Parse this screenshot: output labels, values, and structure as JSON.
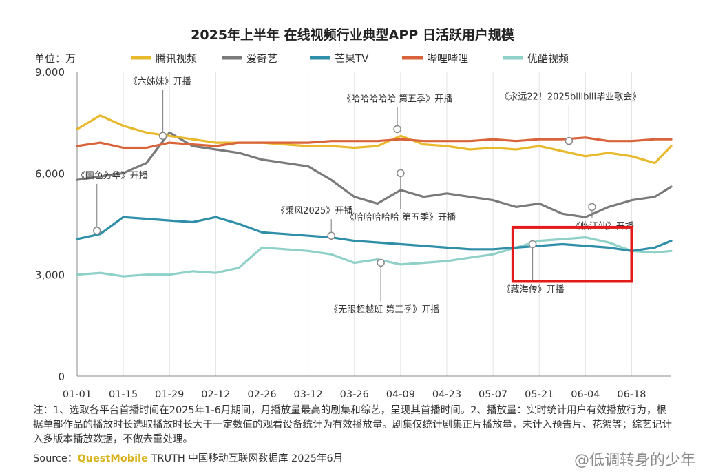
{
  "chart_data": {
    "type": "line",
    "title": "2025年上半年 在线视频行业典型APP 日活跃用户规模",
    "unit_label": "单位：万",
    "ylim": [
      0,
      9000
    ],
    "y_ticks": [
      0,
      3000,
      6000,
      9000
    ],
    "y_tick_labels": [
      "0",
      "3,000",
      "6,000",
      "9,000"
    ],
    "x_range": [
      "2025-01-01",
      "2025-06-30"
    ],
    "x_tick_labels": [
      "01-01",
      "01-15",
      "01-29",
      "02-12",
      "02-26",
      "03-12",
      "03-26",
      "04-09",
      "04-23",
      "05-07",
      "05-21",
      "06-04",
      "06-18"
    ],
    "legend_position": "top",
    "grid": "vertical",
    "series": [
      {
        "name": "腾讯视频",
        "color": "#e8b92c",
        "x": [
          "2025-01-01",
          "2025-01-08",
          "2025-01-15",
          "2025-01-22",
          "2025-01-29",
          "2025-02-05",
          "2025-02-12",
          "2025-02-19",
          "2025-02-26",
          "2025-03-05",
          "2025-03-12",
          "2025-03-19",
          "2025-03-26",
          "2025-04-02",
          "2025-04-09",
          "2025-04-16",
          "2025-04-23",
          "2025-04-30",
          "2025-05-07",
          "2025-05-14",
          "2025-05-21",
          "2025-05-28",
          "2025-06-04",
          "2025-06-11",
          "2025-06-18",
          "2025-06-25",
          "2025-06-30"
        ],
        "values": [
          7300,
          7700,
          7400,
          7200,
          7100,
          7000,
          6900,
          6900,
          6900,
          6850,
          6800,
          6800,
          6750,
          6800,
          7100,
          6850,
          6800,
          6700,
          6750,
          6700,
          6800,
          6650,
          6500,
          6600,
          6500,
          6300,
          6800
        ]
      },
      {
        "name": "爱奇艺",
        "color": "#7a7a7a",
        "x": [
          "2025-01-01",
          "2025-01-08",
          "2025-01-15",
          "2025-01-22",
          "2025-01-29",
          "2025-02-05",
          "2025-02-12",
          "2025-02-19",
          "2025-02-26",
          "2025-03-05",
          "2025-03-12",
          "2025-03-19",
          "2025-03-26",
          "2025-04-02",
          "2025-04-09",
          "2025-04-16",
          "2025-04-23",
          "2025-04-30",
          "2025-05-07",
          "2025-05-14",
          "2025-05-21",
          "2025-05-28",
          "2025-06-04",
          "2025-06-11",
          "2025-06-18",
          "2025-06-25",
          "2025-06-30"
        ],
        "values": [
          5800,
          5900,
          6000,
          6300,
          7200,
          6800,
          6700,
          6600,
          6400,
          6300,
          6200,
          5800,
          5300,
          5100,
          5500,
          5300,
          5400,
          5300,
          5200,
          5000,
          5100,
          4800,
          4700,
          5000,
          5200,
          5300,
          5600
        ]
      },
      {
        "name": "芒果TV",
        "color": "#2f8ea8",
        "x": [
          "2025-01-01",
          "2025-01-08",
          "2025-01-15",
          "2025-01-22",
          "2025-01-29",
          "2025-02-05",
          "2025-02-12",
          "2025-02-19",
          "2025-02-26",
          "2025-03-05",
          "2025-03-12",
          "2025-03-19",
          "2025-03-26",
          "2025-04-02",
          "2025-04-09",
          "2025-04-16",
          "2025-04-23",
          "2025-04-30",
          "2025-05-07",
          "2025-05-14",
          "2025-05-21",
          "2025-05-28",
          "2025-06-04",
          "2025-06-11",
          "2025-06-18",
          "2025-06-25",
          "2025-06-30"
        ],
        "values": [
          4050,
          4200,
          4700,
          4650,
          4600,
          4550,
          4700,
          4500,
          4250,
          4200,
          4150,
          4100,
          4000,
          3950,
          3900,
          3850,
          3800,
          3750,
          3750,
          3800,
          3850,
          3900,
          3850,
          3800,
          3700,
          3800,
          4000
        ]
      },
      {
        "name": "哔哩哔哩",
        "color": "#d9633a",
        "x": [
          "2025-01-01",
          "2025-01-08",
          "2025-01-15",
          "2025-01-22",
          "2025-01-29",
          "2025-02-05",
          "2025-02-12",
          "2025-02-19",
          "2025-02-26",
          "2025-03-05",
          "2025-03-12",
          "2025-03-19",
          "2025-03-26",
          "2025-04-02",
          "2025-04-09",
          "2025-04-16",
          "2025-04-23",
          "2025-04-30",
          "2025-05-07",
          "2025-05-14",
          "2025-05-21",
          "2025-05-28",
          "2025-06-04",
          "2025-06-11",
          "2025-06-18",
          "2025-06-25",
          "2025-06-30"
        ],
        "values": [
          6800,
          6900,
          6750,
          6750,
          6900,
          6850,
          6800,
          6900,
          6900,
          6900,
          6900,
          6950,
          6950,
          6950,
          7000,
          6950,
          6950,
          6950,
          7000,
          6950,
          7000,
          7000,
          7050,
          6950,
          6950,
          7000,
          7000
        ]
      },
      {
        "name": "优酷视频",
        "color": "#8fd0c8",
        "x": [
          "2025-01-01",
          "2025-01-08",
          "2025-01-15",
          "2025-01-22",
          "2025-01-29",
          "2025-02-05",
          "2025-02-12",
          "2025-02-19",
          "2025-02-26",
          "2025-03-05",
          "2025-03-12",
          "2025-03-19",
          "2025-03-26",
          "2025-04-02",
          "2025-04-09",
          "2025-04-16",
          "2025-04-23",
          "2025-04-30",
          "2025-05-07",
          "2025-05-14",
          "2025-05-21",
          "2025-05-28",
          "2025-06-04",
          "2025-06-11",
          "2025-06-18",
          "2025-06-25",
          "2025-06-30"
        ],
        "values": [
          3000,
          3050,
          2950,
          3000,
          3000,
          3100,
          3050,
          3200,
          3800,
          3750,
          3700,
          3600,
          3350,
          3450,
          3300,
          3350,
          3400,
          3500,
          3600,
          3800,
          4000,
          4050,
          4100,
          3950,
          3700,
          3650,
          3700
        ]
      }
    ],
    "annotations": [
      {
        "text": "《六姊妹》开播",
        "date": "2025-01-27",
        "value": 7100,
        "dx": -50,
        "dy": -75
      },
      {
        "text": "《国色芳华》开播",
        "date": "2025-01-07",
        "value": 4300,
        "dx": -30,
        "dy": -76
      },
      {
        "text": "《哈哈哈哈哈 第五季》开播",
        "date": "2025-04-08",
        "value": 7300,
        "dx": -80,
        "dy": -40
      },
      {
        "text": "《哈哈哈哈哈 第五季》开播",
        "date": "2025-04-09",
        "value": 6000,
        "dx": -80,
        "dy": 68
      },
      {
        "text": "《乘风2025》开播",
        "date": "2025-03-19",
        "value": 4150,
        "dx": -80,
        "dy": -32
      },
      {
        "text": "《无限超越班 第三季》开播",
        "date": "2025-04-03",
        "value": 3350,
        "dx": -75,
        "dy": 72
      },
      {
        "text": "《永远22！2025bilibili毕业歌会》",
        "date": "2025-05-30",
        "value": 6950,
        "dx": -100,
        "dy": -60
      },
      {
        "text": "《临江仙》开播",
        "date": "2025-06-06",
        "value": 5000,
        "dx": -30,
        "dy": 32
      },
      {
        "text": "《藏海传》开播",
        "date": "2025-05-19",
        "value": 3900,
        "dx": -45,
        "dy": 70
      }
    ],
    "highlight_box": {
      "x_range": [
        "2025-05-13",
        "2025-06-18"
      ],
      "y_range": [
        2800,
        4400
      ],
      "color": "#e41a1a"
    }
  },
  "legend_items": [
    "腾讯视频",
    "爱奇艺",
    "芒果TV",
    "哔哩哔哩",
    "优酷视频"
  ],
  "footer": {
    "note": "注：1、选取各平台首播时间在2025年1-6月期间，月播放量最高的剧集和综艺，呈现其首播时间。2、播放量：实时统计用户有效播放行为，根据单部作品的播放时长选取播放时长大于一定数值的观看设备统计为有效播放量。剧集仅统计剧集正片播放量，未计入预告片、花絮等；综艺记计入多版本播放数据，不做去重处理。",
    "source_prefix": "Source：",
    "source_brand": "QuestMobile",
    "source_rest": " TRUTH 中国移动互联网数据库 2025年6月",
    "watermark": "@低调转身的少年"
  }
}
